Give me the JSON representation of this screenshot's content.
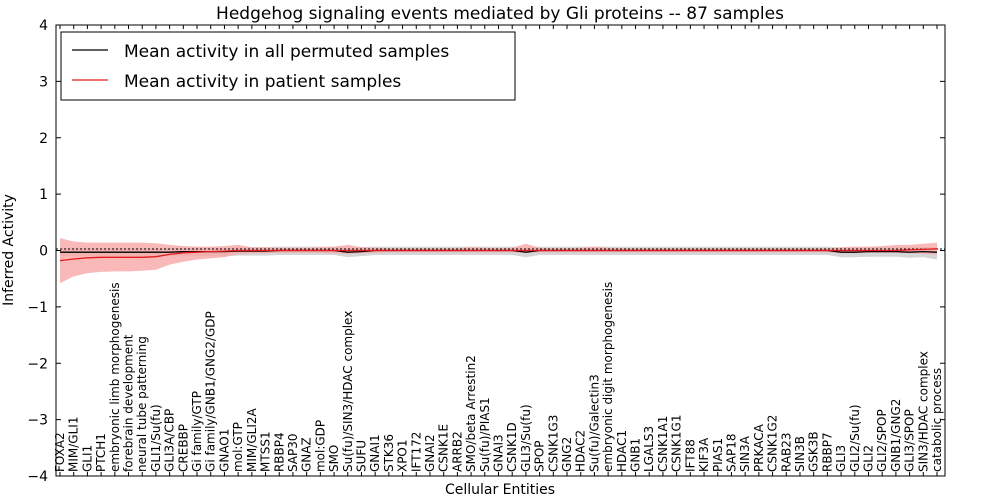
{
  "chart_data": {
    "type": "line",
    "title": "Hedgehog signaling events mediated by Gli proteins -- 87 samples",
    "xlabel": "Cellular Entities",
    "ylabel": "Inferred Activity",
    "ylim": [
      -4,
      4
    ],
    "yticks": [
      -4,
      -3,
      -2,
      -1,
      0,
      1,
      2,
      3,
      4
    ],
    "grid": false,
    "legend_position": "top-left",
    "categories": [
      "FOXA2",
      "MIM/GLI1",
      "GLI1",
      "PTCH1",
      "embryonic limb morphogenesis",
      "forebrain development",
      "neural tube patterning",
      "GLI1/Su(fu)",
      "GLI3A/CBP",
      "CREBBP",
      "Gi family/GTP",
      "Gi family/GNB1/GNG2/GDP",
      "GNAO1",
      "mol:GTP",
      "MIM/GLI2A",
      "MTSS1",
      "RBBP4",
      "SAP30",
      "GNAZ",
      "mol:GDP",
      "SMO",
      "Su(fu)/SIN3/HDAC complex",
      "SUFU",
      "GNAI1",
      "STK36",
      "XPO1",
      "IFT172",
      "GNAI2",
      "CSNK1E",
      "ARRB2",
      "SMO/beta Arrestin2",
      "Su(fu)/PIAS1",
      "GNAI3",
      "CSNK1D",
      "GLI3/Su(fu)",
      "SPOP",
      "CSNK1G3",
      "GNG2",
      "HDAC2",
      "Su(fu)/Galectin3",
      "embryonic digit morphogenesis",
      "HDAC1",
      "GNB1",
      "LGALS3",
      "CSNK1A1",
      "CSNK1G1",
      "IFT88",
      "KIF3A",
      "PIAS1",
      "SAP18",
      "SIN3A",
      "PRKACA",
      "CSNK1G2",
      "RAB23",
      "SIN3B",
      "GSK3B",
      "RBBP7",
      "GLI3",
      "GLI2/Su(fu)",
      "GLI2",
      "GLI2/SPOP",
      "GNB1/GNG2",
      "GLI3/SPOP",
      "SIN3/HDAC complex",
      "catabolic process"
    ],
    "series": [
      {
        "name": "Mean activity in all permuted samples",
        "color": "#000000",
        "band_color": "#c8c8c8",
        "values": [
          -0.03,
          -0.03,
          -0.03,
          -0.03,
          -0.03,
          -0.03,
          -0.03,
          -0.03,
          -0.03,
          -0.02,
          -0.02,
          -0.02,
          -0.02,
          -0.01,
          -0.01,
          -0.01,
          0,
          0,
          0,
          0,
          0,
          -0.03,
          -0.02,
          0,
          0,
          0,
          0,
          0,
          0,
          0,
          0,
          0,
          0,
          0,
          -0.03,
          0,
          0,
          0,
          0,
          0,
          0,
          0,
          0,
          0,
          0,
          0,
          0,
          0,
          0,
          0,
          0,
          0,
          0,
          0,
          0,
          0,
          0,
          -0.03,
          -0.03,
          -0.02,
          -0.02,
          -0.02,
          -0.03,
          -0.02,
          -0.03
        ],
        "lower": [
          -0.1,
          -0.1,
          -0.1,
          -0.1,
          -0.1,
          -0.1,
          -0.1,
          -0.1,
          -0.1,
          -0.1,
          -0.1,
          -0.1,
          -0.1,
          -0.09,
          -0.09,
          -0.09,
          -0.08,
          -0.08,
          -0.08,
          -0.08,
          -0.08,
          -0.12,
          -0.1,
          -0.08,
          -0.08,
          -0.08,
          -0.08,
          -0.08,
          -0.08,
          -0.08,
          -0.08,
          -0.08,
          -0.08,
          -0.08,
          -0.12,
          -0.08,
          -0.08,
          -0.08,
          -0.08,
          -0.08,
          -0.08,
          -0.08,
          -0.08,
          -0.08,
          -0.08,
          -0.08,
          -0.08,
          -0.08,
          -0.08,
          -0.08,
          -0.08,
          -0.08,
          -0.08,
          -0.08,
          -0.08,
          -0.08,
          -0.08,
          -0.12,
          -0.12,
          -0.11,
          -0.11,
          -0.11,
          -0.13,
          -0.12,
          -0.16
        ],
        "upper": [
          0.04,
          0.04,
          0.04,
          0.04,
          0.04,
          0.04,
          0.04,
          0.04,
          0.04,
          0.05,
          0.05,
          0.05,
          0.05,
          0.06,
          0.06,
          0.06,
          0.07,
          0.07,
          0.07,
          0.07,
          0.07,
          0.05,
          0.06,
          0.07,
          0.07,
          0.07,
          0.07,
          0.07,
          0.07,
          0.07,
          0.07,
          0.07,
          0.07,
          0.07,
          0.05,
          0.07,
          0.07,
          0.07,
          0.07,
          0.07,
          0.07,
          0.07,
          0.07,
          0.07,
          0.07,
          0.07,
          0.07,
          0.07,
          0.07,
          0.07,
          0.07,
          0.07,
          0.07,
          0.07,
          0.07,
          0.07,
          0.07,
          0.05,
          0.05,
          0.06,
          0.06,
          0.06,
          0.06,
          0.06,
          0.06
        ]
      },
      {
        "name": "Mean activity in patient samples",
        "color": "#e41a1c",
        "band_color": "#f7a8a8",
        "values": [
          -0.18,
          -0.15,
          -0.13,
          -0.12,
          -0.12,
          -0.12,
          -0.12,
          -0.11,
          -0.07,
          -0.04,
          -0.03,
          -0.02,
          -0.01,
          0,
          0,
          0,
          0,
          0,
          0,
          0,
          0,
          0,
          0,
          0,
          0,
          0,
          0,
          0,
          0,
          0,
          0,
          0,
          0,
          0,
          0,
          0,
          0,
          0,
          0,
          0,
          0,
          0,
          0,
          0,
          0,
          0,
          0,
          0,
          0,
          0,
          0,
          0,
          0,
          0,
          0,
          0,
          0,
          0,
          0,
          0,
          0,
          0,
          0.01,
          0.02,
          0.03
        ],
        "lower": [
          -0.58,
          -0.46,
          -0.4,
          -0.38,
          -0.37,
          -0.37,
          -0.36,
          -0.34,
          -0.25,
          -0.2,
          -0.16,
          -0.14,
          -0.12,
          -0.06,
          -0.05,
          -0.05,
          -0.04,
          -0.04,
          -0.04,
          -0.04,
          -0.05,
          -0.06,
          -0.05,
          -0.04,
          -0.03,
          -0.03,
          -0.03,
          -0.03,
          -0.03,
          -0.03,
          -0.03,
          -0.03,
          -0.03,
          -0.03,
          -0.04,
          -0.03,
          -0.03,
          -0.03,
          -0.03,
          -0.03,
          -0.03,
          -0.03,
          -0.03,
          -0.03,
          -0.03,
          -0.03,
          -0.03,
          -0.03,
          -0.03,
          -0.03,
          -0.03,
          -0.03,
          -0.03,
          -0.03,
          -0.03,
          -0.03,
          -0.03,
          -0.05,
          -0.05,
          -0.04,
          -0.04,
          -0.04,
          -0.05,
          -0.06,
          -0.07
        ],
        "upper": [
          0.22,
          0.16,
          0.14,
          0.14,
          0.14,
          0.14,
          0.14,
          0.13,
          0.1,
          0.08,
          0.07,
          0.07,
          0.08,
          0.1,
          0.06,
          0.06,
          0.05,
          0.05,
          0.05,
          0.06,
          0.07,
          0.1,
          0.06,
          0.05,
          0.04,
          0.04,
          0.04,
          0.04,
          0.04,
          0.04,
          0.06,
          0.05,
          0.04,
          0.05,
          0.12,
          0.05,
          0.04,
          0.04,
          0.05,
          0.07,
          0.05,
          0.04,
          0.04,
          0.04,
          0.04,
          0.04,
          0.04,
          0.04,
          0.04,
          0.04,
          0.04,
          0.04,
          0.04,
          0.04,
          0.04,
          0.04,
          0.04,
          0.06,
          0.07,
          0.07,
          0.08,
          0.1,
          0.1,
          0.12,
          0.14
        ]
      }
    ]
  }
}
